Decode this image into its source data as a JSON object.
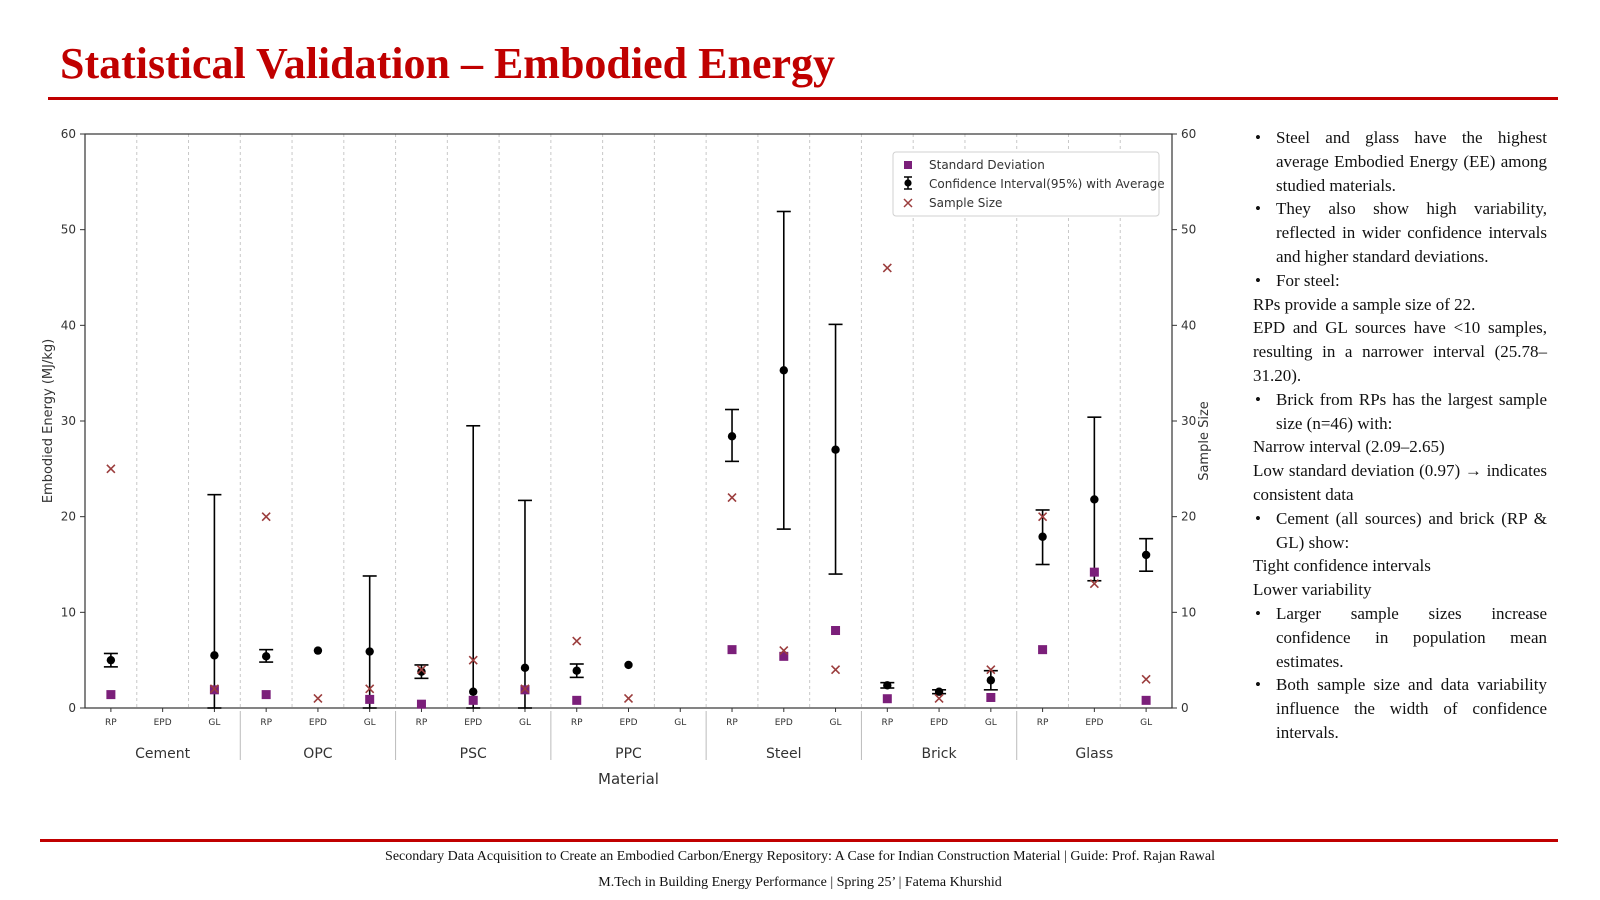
{
  "slide": {
    "title": "Statistical Validation – Embodied Energy",
    "footer_line1": "Secondary Data Acquisition to Create an Embodied Carbon/Energy Repository: A Case for Indian Construction Material | Guide: Prof. Rajan Rawal",
    "footer_line2": "M.Tech in Building Energy Performance | Spring  25’ |  Fatema Khurshid"
  },
  "notes": [
    {
      "kind": "bullet",
      "text": "Steel and glass have the highest average Embodied Energy (EE) among studied materials."
    },
    {
      "kind": "bullet",
      "text": "They also show high variability, reflected in wider confidence intervals and higher standard deviations."
    },
    {
      "kind": "bullet",
      "text": "For steel:"
    },
    {
      "kind": "plain",
      "text": "RPs provide a sample size of 22."
    },
    {
      "kind": "plain",
      "text": "EPD and GL sources have <10 samples, resulting in a narrower interval (25.78–31.20)."
    },
    {
      "kind": "bullet",
      "text": "Brick from RPs has the largest sample size (n=46) with:"
    },
    {
      "kind": "plain",
      "text": "Narrow interval (2.09–2.65)"
    },
    {
      "kind": "plain",
      "text": "Low standard deviation (0.97) → indicates consistent data"
    },
    {
      "kind": "bullet",
      "text": "Cement (all sources) and brick (RP & GL) show:"
    },
    {
      "kind": "plain",
      "text": "Tight confidence intervals"
    },
    {
      "kind": "plain",
      "text": "Lower variability"
    },
    {
      "kind": "bullet",
      "text": "Larger sample sizes increase confidence in population mean estimates."
    },
    {
      "kind": "bullet",
      "text": "Both sample size and data variability influence the width of confidence intervals."
    }
  ],
  "chart_data": {
    "type": "scatter",
    "xlabel": "Material",
    "ylabel": "Embodied Energy (MJ/kg)",
    "y2label": "Sample Size",
    "ylim": [
      0,
      60
    ],
    "y2lim": [
      0,
      60
    ],
    "yticks": [
      0,
      10,
      20,
      30,
      40,
      50,
      60
    ],
    "legend_position": "top-right",
    "legend": [
      "Standard Deviation",
      "Confidence Interval(95%) with Average",
      "Sample Size"
    ],
    "colors": {
      "sd": "#7b1f7a",
      "ci": "#000000",
      "sample": "#9b3d3d",
      "grid": "#c8c8c8",
      "axis": "#333333"
    },
    "groups": [
      "Cement",
      "OPC",
      "PSC",
      "PPC",
      "Steel",
      "Brick",
      "Glass"
    ],
    "sources": [
      "RP",
      "EPD",
      "GL"
    ],
    "points": [
      {
        "group": "Cement",
        "source": "RP",
        "sd": 1.4,
        "mean": 5.0,
        "ci_low": 4.3,
        "ci_high": 5.7,
        "n": 25
      },
      {
        "group": "Cement",
        "source": "EPD",
        "sd": null,
        "mean": null,
        "ci_low": null,
        "ci_high": null,
        "n": null
      },
      {
        "group": "Cement",
        "source": "GL",
        "sd": 1.9,
        "mean": 5.5,
        "ci_low": 0,
        "ci_high": 22.3,
        "n": 2
      },
      {
        "group": "OPC",
        "source": "RP",
        "sd": 1.4,
        "mean": 5.4,
        "ci_low": 4.8,
        "ci_high": 6.1,
        "n": 20
      },
      {
        "group": "OPC",
        "source": "EPD",
        "sd": null,
        "mean": 6.0,
        "ci_low": 6.0,
        "ci_high": 6.0,
        "n": 1
      },
      {
        "group": "OPC",
        "source": "GL",
        "sd": 0.9,
        "mean": 5.9,
        "ci_low": 0,
        "ci_high": 13.8,
        "n": 2
      },
      {
        "group": "PSC",
        "source": "RP",
        "sd": 0.4,
        "mean": 3.8,
        "ci_low": 3.1,
        "ci_high": 4.5,
        "n": 4
      },
      {
        "group": "PSC",
        "source": "EPD",
        "sd": 0.8,
        "mean": 1.7,
        "ci_low": 0,
        "ci_high": 29.5,
        "n": 5
      },
      {
        "group": "PSC",
        "source": "GL",
        "sd": 1.9,
        "mean": 4.2,
        "ci_low": 0,
        "ci_high": 21.7,
        "n": 2
      },
      {
        "group": "PPC",
        "source": "RP",
        "sd": 0.8,
        "mean": 3.9,
        "ci_low": 3.2,
        "ci_high": 4.6,
        "n": 7
      },
      {
        "group": "PPC",
        "source": "EPD",
        "sd": null,
        "mean": 4.5,
        "ci_low": 4.5,
        "ci_high": 4.5,
        "n": 1
      },
      {
        "group": "PPC",
        "source": "GL",
        "sd": null,
        "mean": null,
        "ci_low": null,
        "ci_high": null,
        "n": null
      },
      {
        "group": "Steel",
        "source": "RP",
        "sd": 6.1,
        "mean": 28.4,
        "ci_low": 25.78,
        "ci_high": 31.2,
        "n": 22
      },
      {
        "group": "Steel",
        "source": "EPD",
        "sd": 5.4,
        "mean": 35.3,
        "ci_low": 18.7,
        "ci_high": 51.9,
        "n": 6
      },
      {
        "group": "Steel",
        "source": "GL",
        "sd": 8.1,
        "mean": 27.0,
        "ci_low": 14.0,
        "ci_high": 40.1,
        "n": 4
      },
      {
        "group": "Brick",
        "source": "RP",
        "sd": 0.97,
        "mean": 2.37,
        "ci_low": 2.09,
        "ci_high": 2.65,
        "n": 46
      },
      {
        "group": "Brick",
        "source": "EPD",
        "sd": null,
        "mean": 1.7,
        "ci_low": 1.5,
        "ci_high": 1.9,
        "n": 1
      },
      {
        "group": "Brick",
        "source": "GL",
        "sd": 1.1,
        "mean": 2.9,
        "ci_low": 1.9,
        "ci_high": 3.9,
        "n": 4
      },
      {
        "group": "Glass",
        "source": "RP",
        "sd": 6.1,
        "mean": 17.9,
        "ci_low": 15.0,
        "ci_high": 20.7,
        "n": 20
      },
      {
        "group": "Glass",
        "source": "EPD",
        "sd": 14.2,
        "mean": 21.8,
        "ci_low": 13.3,
        "ci_high": 30.4,
        "n": 13
      },
      {
        "group": "Glass",
        "source": "GL",
        "sd": 0.8,
        "mean": 16.0,
        "ci_low": 14.3,
        "ci_high": 17.7,
        "n": 3
      }
    ]
  }
}
